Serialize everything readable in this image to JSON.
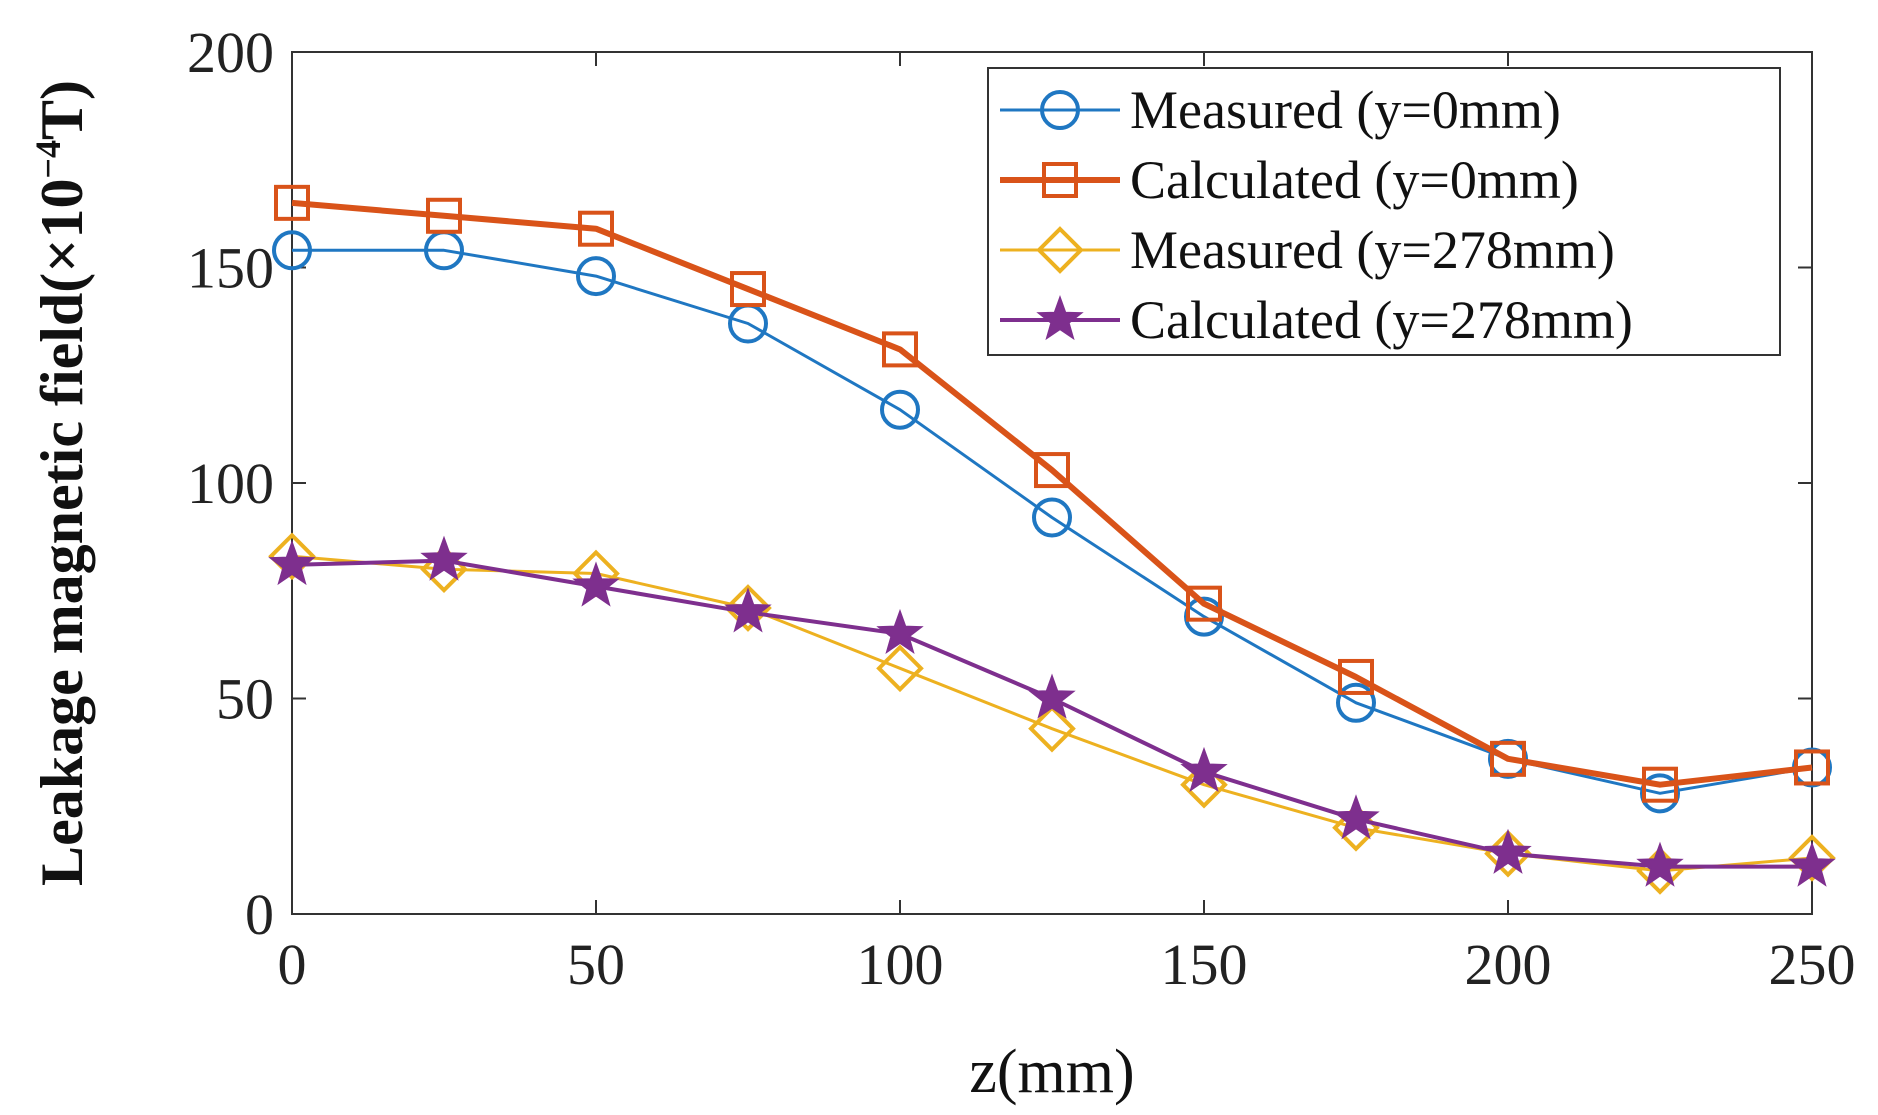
{
  "chart_data": {
    "type": "line",
    "title": "",
    "xlabel": "z(mm)",
    "ylabel": {
      "main": "Leakage magnetic field(×10",
      "exponent": "−4",
      "unit": "T)"
    },
    "xlim": [
      0,
      250
    ],
    "ylim": [
      0,
      200
    ],
    "x_ticks": [
      "0",
      "50",
      "100",
      "150",
      "200",
      "250"
    ],
    "y_ticks": [
      "0",
      "50",
      "100",
      "150",
      "200"
    ],
    "grid": false,
    "legend_position": "top-right",
    "x": [
      0,
      25,
      50,
      75,
      100,
      125,
      150,
      175,
      200,
      225,
      250
    ],
    "series": [
      {
        "name": "Measured (y=0mm)",
        "color": "#1f77c2",
        "marker": "circle",
        "values": [
          154,
          154,
          148,
          137,
          117,
          92,
          69,
          49,
          36,
          28,
          34
        ]
      },
      {
        "name": "Calculated (y=0mm)",
        "color": "#d95319",
        "marker": "square",
        "values": [
          165,
          162,
          159,
          145,
          131,
          103,
          72,
          55,
          36,
          30,
          34
        ]
      },
      {
        "name": "Measured (y=278mm)",
        "color": "#edb120",
        "marker": "diamond",
        "values": [
          83,
          80,
          79,
          71,
          57,
          43,
          30,
          20,
          14,
          10,
          13
        ]
      },
      {
        "name": "Calculated (y=278mm)",
        "color": "#7e2f8e",
        "marker": "star",
        "values": [
          81,
          82,
          76,
          70,
          65,
          50,
          33,
          22,
          14,
          11,
          11
        ]
      }
    ]
  }
}
